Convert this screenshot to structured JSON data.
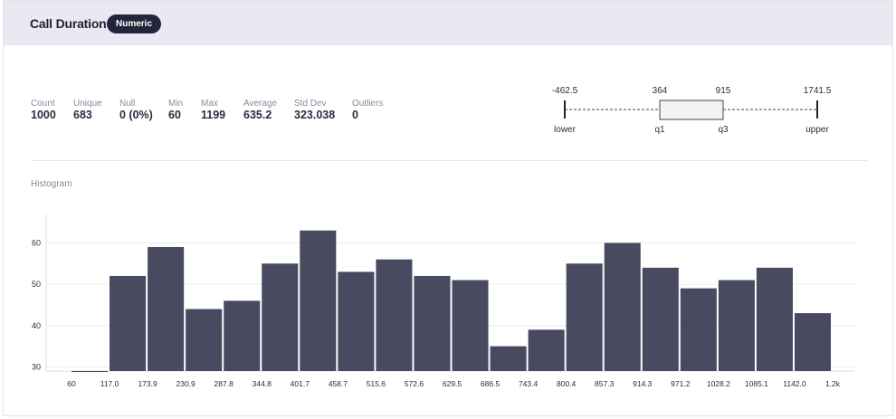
{
  "header": {
    "title": "Call Duration",
    "badge": "Numeric"
  },
  "stats": [
    {
      "label": "Count",
      "value": "1000"
    },
    {
      "label": "Unique",
      "value": "683"
    },
    {
      "label": "Null",
      "value": "0 (0%)"
    },
    {
      "label": "Min",
      "value": "60"
    },
    {
      "label": "Max",
      "value": "1199"
    },
    {
      "label": "Average",
      "value": "635.2"
    },
    {
      "label": "Std Dev",
      "value": "323.038"
    },
    {
      "label": "Outliers",
      "value": "0"
    }
  ],
  "boxplot": {
    "lower": -462.5,
    "q1": 364,
    "q3": 915,
    "upper": 1741.5,
    "lower_text": "-462.5",
    "q1_text": "364",
    "q3_text": "915",
    "upper_text": "1741.5",
    "lower_label": "lower",
    "q1_label": "q1",
    "q3_label": "q3",
    "upper_label": "upper"
  },
  "histogram_label": "Histogram",
  "chart_data": {
    "type": "bar",
    "title": "",
    "xlabel": "",
    "ylabel": "",
    "bin_edges": [
      60,
      117.0,
      173.9,
      230.9,
      287.8,
      344.8,
      401.7,
      458.7,
      515.6,
      572.6,
      629.5,
      686.5,
      743.4,
      800.4,
      857.3,
      914.3,
      971.2,
      1028.2,
      1085.1,
      1142.0,
      1199
    ],
    "tick_labels": [
      "60",
      "117.0",
      "173.9",
      "230.9",
      "287.8",
      "344.8",
      "401.7",
      "458.7",
      "515.6",
      "572.6",
      "629.5",
      "686.5",
      "743.4",
      "800.4",
      "857.3",
      "914.3",
      "971.2",
      "1028.2",
      "1085.1",
      "1142.0",
      "1.2k"
    ],
    "values": [
      29,
      52,
      59,
      44,
      46,
      55,
      63,
      53,
      56,
      52,
      51,
      35,
      39,
      55,
      60,
      54,
      49,
      51,
      54,
      43
    ],
    "ylim": [
      29,
      66
    ],
    "yticks": [
      30,
      40,
      50,
      60
    ],
    "grid": true,
    "bar_color": "#484a60"
  }
}
